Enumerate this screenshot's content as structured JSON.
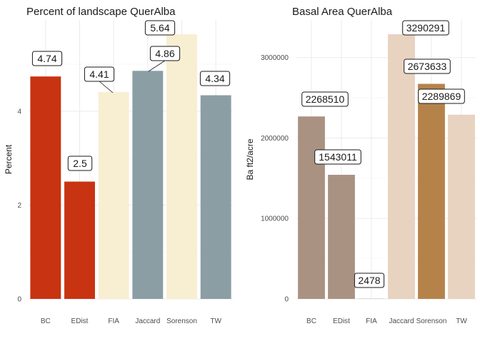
{
  "chart_data": [
    {
      "type": "bar",
      "title": "Percent of landscape  QuerAlba",
      "xlabel": "",
      "ylabel": "Percent",
      "categories": [
        "BC",
        "EDist",
        "FIA",
        "Jaccard",
        "Sorenson",
        "TW"
      ],
      "values": [
        4.74,
        2.5,
        4.41,
        4.86,
        5.64,
        4.34
      ],
      "data_labels": [
        "4.74",
        "2.5",
        "4.41",
        "4.86",
        "5.64",
        "4.34"
      ],
      "colors": [
        "#c83311",
        "#c83311",
        "#f8eed2",
        "#8a9ea4",
        "#f8eed2",
        "#8a9ea4"
      ],
      "ylim": [
        0,
        5.64
      ],
      "yticks": [
        0,
        2,
        4
      ],
      "ytick_labels": [
        "0",
        "2",
        "4"
      ],
      "grid": true,
      "legend": "none"
    },
    {
      "type": "bar",
      "title": "Basal Area  QuerAlba",
      "xlabel": "",
      "ylabel": "Ba ft2/acre",
      "categories": [
        "BC",
        "EDist",
        "FIA",
        "Jaccard",
        "Sorenson",
        "TW"
      ],
      "values": [
        2268510,
        1543011,
        2478,
        3290291,
        2673633,
        2289869
      ],
      "data_labels": [
        "2268510",
        "1543011",
        "2478",
        "3290291",
        "2673633",
        "2289869"
      ],
      "colors": [
        "#aa9283",
        "#aa9283",
        "#aa9283",
        "#e8d2c0",
        "#b5834a",
        "#e8d2c0"
      ],
      "ylim": [
        0,
        3290291
      ],
      "yticks": [
        0,
        1000000,
        2000000,
        3000000
      ],
      "ytick_labels": [
        "0",
        "1000000",
        "2000000",
        "3000000"
      ],
      "grid": true,
      "legend": "none"
    }
  ]
}
